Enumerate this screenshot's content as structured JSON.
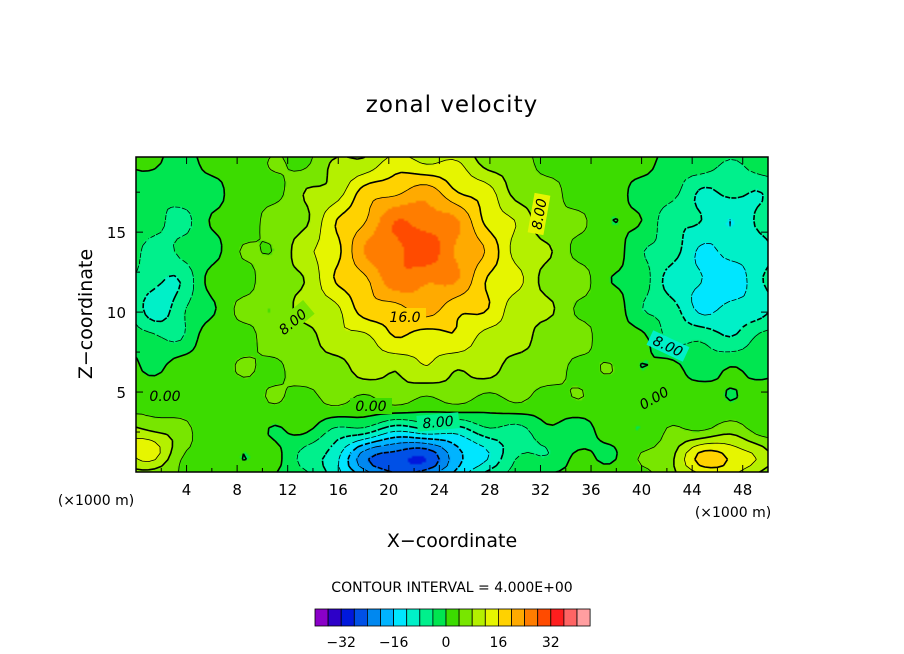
{
  "chart_data": {
    "type": "heatmap",
    "title": "zonal velocity",
    "xlabel": "X−coordinate",
    "ylabel": "Z−coordinate",
    "x_unit_label": "(×1000 m)",
    "xlim": [
      0,
      50
    ],
    "ylim": [
      0,
      19.7
    ],
    "x_ticks": [
      "4",
      "8",
      "12",
      "16",
      "20",
      "24",
      "28",
      "32",
      "36",
      "40",
      "44",
      "48"
    ],
    "y_ticks": [
      "5",
      "10",
      "15"
    ],
    "contour_interval_text": "CONTOUR INTERVAL = 4.000E+00",
    "contour_labels": [
      "8.00",
      "8.00",
      "16.0",
      "8.00",
      "0.00",
      "0.00",
      "8.00",
      "0.00"
    ],
    "colorbar": {
      "tick_labels": [
        "−32",
        "−16",
        "0",
        "16",
        "32"
      ],
      "colors": [
        "#8a00c8",
        "#2d00c8",
        "#0018dc",
        "#0050e6",
        "#0088f0",
        "#00b4ff",
        "#00e6ff",
        "#00f0c8",
        "#00f08c",
        "#00e650",
        "#3cdc00",
        "#78e600",
        "#b4f000",
        "#e6f500",
        "#ffd200",
        "#ffaa00",
        "#ff7d00",
        "#ff4b00",
        "#ff1e1e",
        "#ff6464",
        "#ff9ea0"
      ]
    },
    "field_features": [
      {
        "name": "jet maximum",
        "x": 22,
        "z": 15,
        "value": 22
      },
      {
        "name": "surface minimum",
        "x": 21,
        "z": 0.5,
        "value": -24
      },
      {
        "name": "lower-left maximum",
        "x": 0.5,
        "z": 1.5,
        "value": 12
      },
      {
        "name": "lower-right maximum",
        "x": 46,
        "z": 0.8,
        "value": 16
      },
      {
        "name": "upper-right minimum",
        "x": 46,
        "z": 11.5,
        "value": -14
      },
      {
        "name": "left-side minimum",
        "x": 2,
        "z": 10.5,
        "value": -10
      }
    ]
  }
}
